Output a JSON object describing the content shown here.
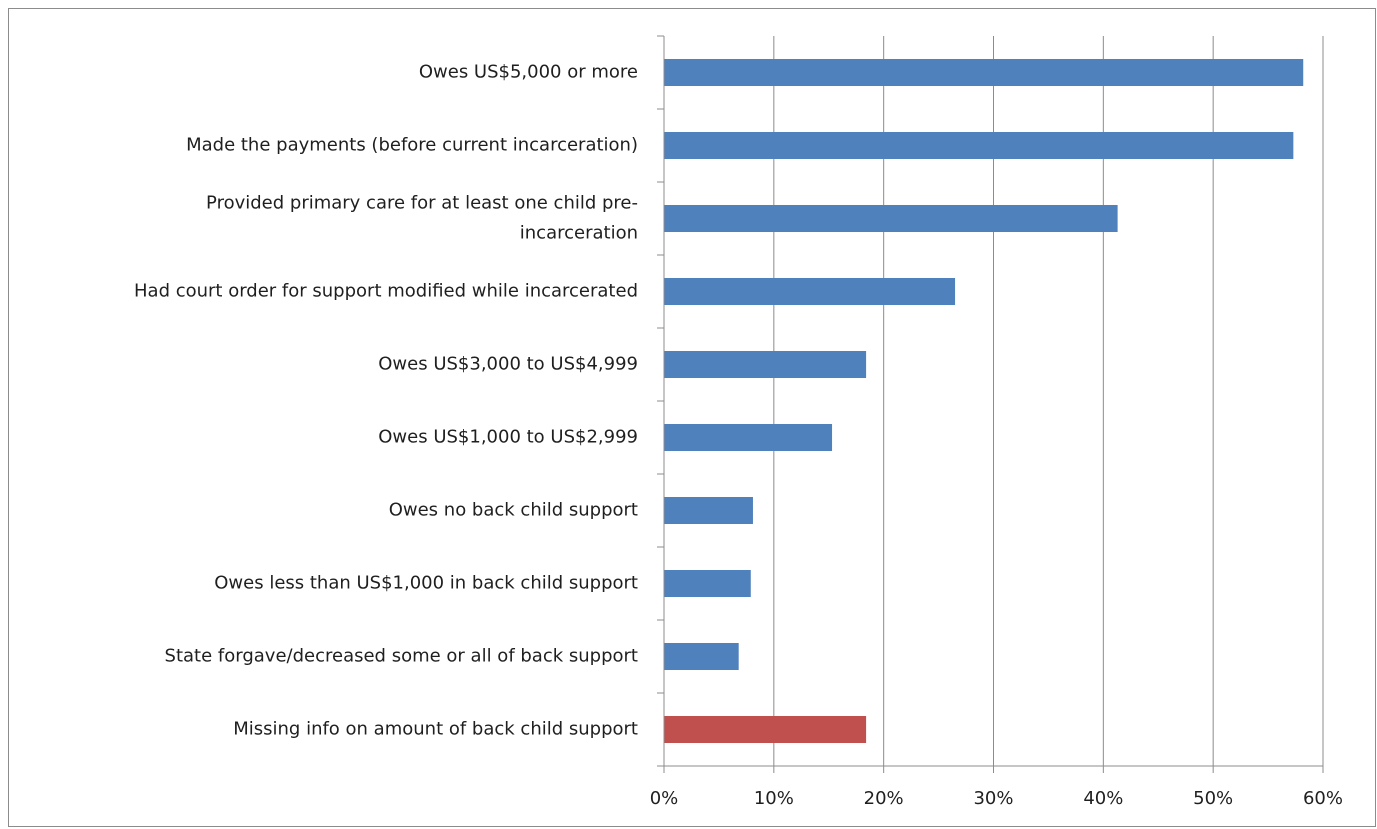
{
  "chart_data": {
    "type": "bar",
    "orientation": "horizontal",
    "categories": [
      [
        "Owes US$5,000 or more"
      ],
      [
        "Made the payments (before current incarceration)"
      ],
      [
        "Provided primary care for at least one child pre-",
        "incarceration"
      ],
      [
        "Had court order for support modified while incarcerated"
      ],
      [
        "Owes US$3,000 to US$4,999"
      ],
      [
        "Owes US$1,000 to US$2,999"
      ],
      [
        "Owes no back child support"
      ],
      [
        "Owes less than US$1,000 in back child support"
      ],
      [
        "State forgave/decreased some or all of back support"
      ],
      [
        "Missing info on amount of back child support"
      ]
    ],
    "values": [
      58.2,
      57.3,
      41.3,
      26.5,
      18.4,
      15.3,
      8.1,
      7.9,
      6.8,
      18.4
    ],
    "bar_colors": [
      "#4f81bd",
      "#4f81bd",
      "#4f81bd",
      "#4f81bd",
      "#4f81bd",
      "#4f81bd",
      "#4f81bd",
      "#4f81bd",
      "#4f81bd",
      "#c0504d"
    ],
    "xlim": [
      0,
      60
    ],
    "x_ticks": [
      0,
      10,
      20,
      30,
      40,
      50,
      60
    ],
    "x_tick_labels": [
      "0%",
      "10%",
      "20%",
      "30%",
      "40%",
      "50%",
      "60%"
    ],
    "grid": "vertical",
    "title": "",
    "xlabel": "",
    "ylabel": ""
  }
}
